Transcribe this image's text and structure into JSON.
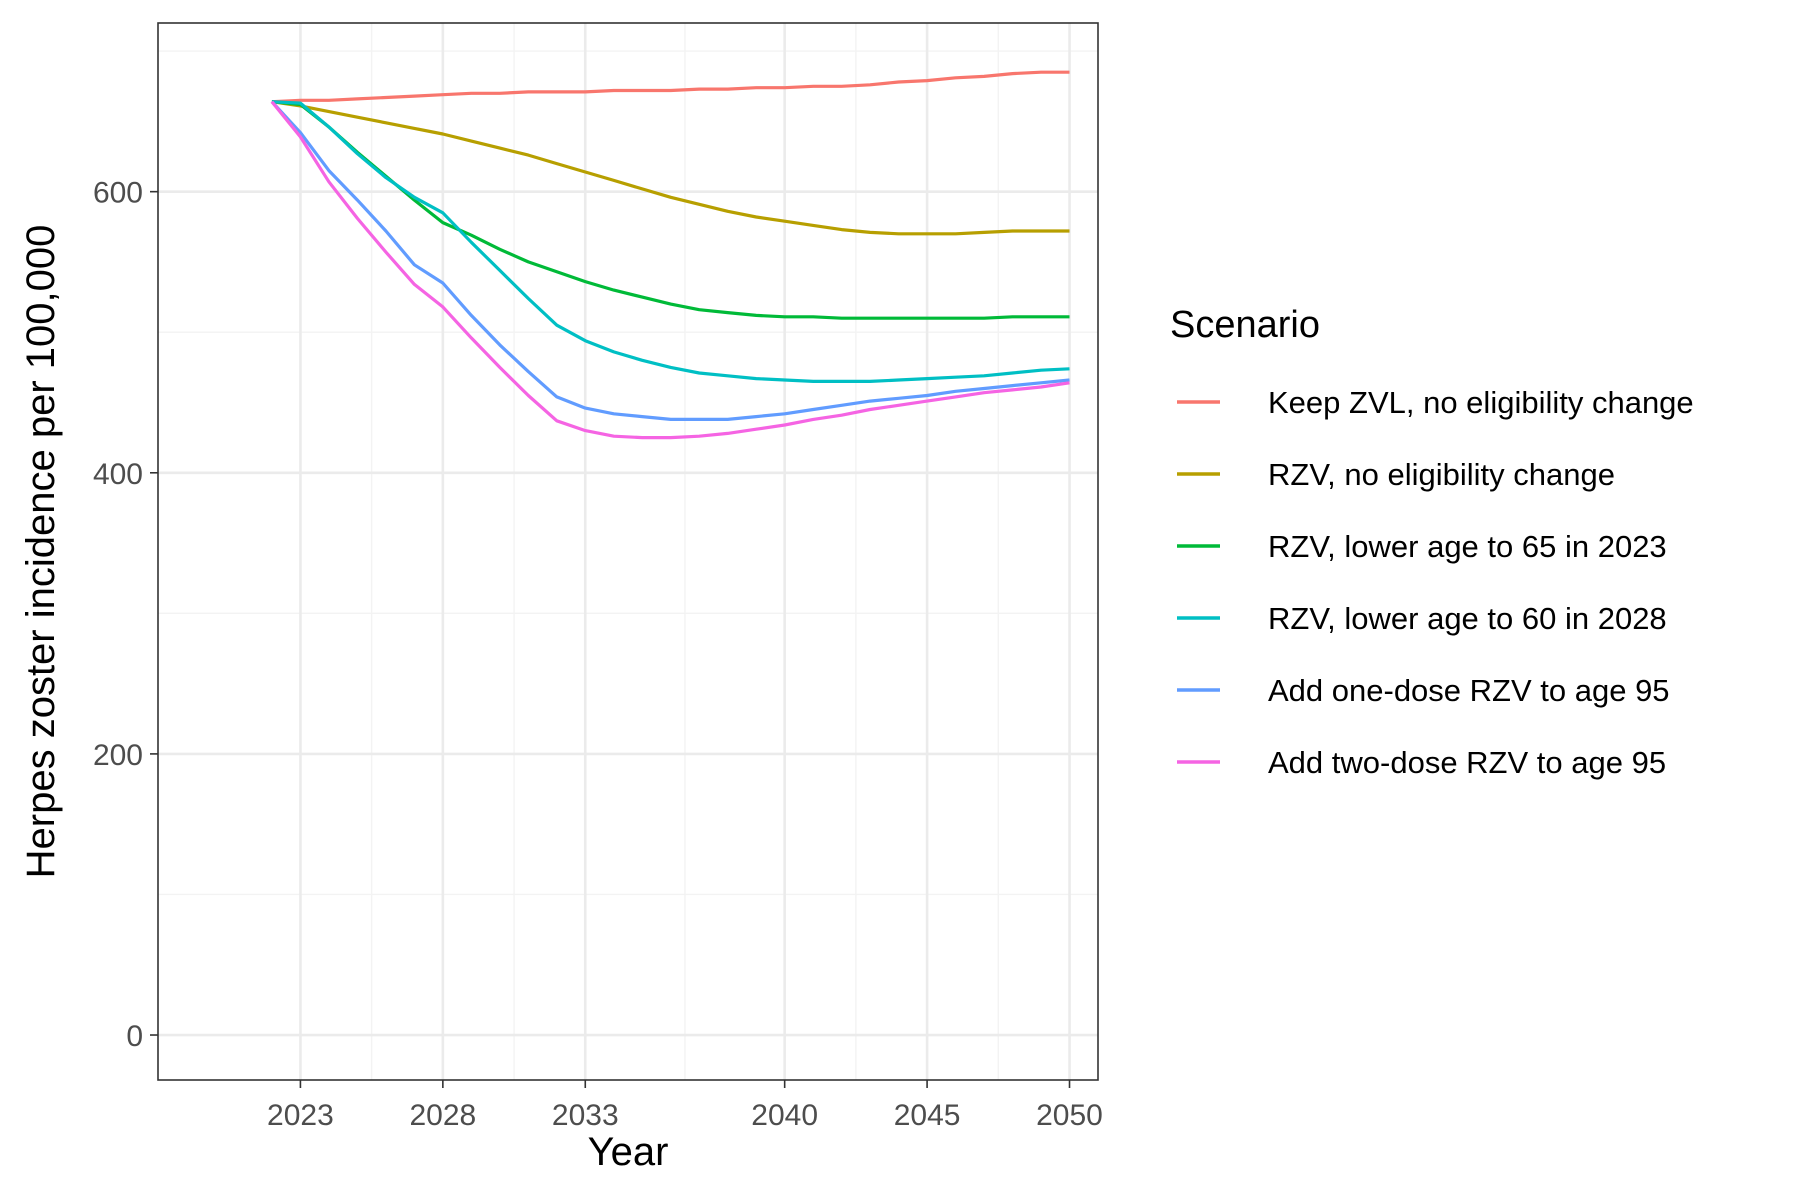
{
  "chart_data": {
    "type": "line",
    "title": "",
    "xlabel": "Year",
    "ylabel": "Herpes zoster incidence per 100,000",
    "xlim": [
      2018,
      2051
    ],
    "ylim": [
      -32,
      720
    ],
    "x_ticks": [
      2023,
      2028,
      2033,
      2040,
      2045,
      2050
    ],
    "x_tick_labels": [
      "2023",
      "2028",
      "2033",
      "2040",
      "2045",
      "2050"
    ],
    "y_ticks": [
      0,
      200,
      400,
      600
    ],
    "y_tick_labels": [
      "0",
      "200",
      "400",
      "600"
    ],
    "grid": true,
    "legend": {
      "title": "Scenario",
      "position": "right"
    },
    "series": [
      {
        "name": "Keep ZVL, no eligibility change",
        "color": "#F8766D",
        "x": [
          2022,
          2023,
          2024,
          2025,
          2026,
          2027,
          2028,
          2029,
          2030,
          2031,
          2032,
          2033,
          2034,
          2035,
          2036,
          2037,
          2038,
          2039,
          2040,
          2041,
          2042,
          2043,
          2044,
          2045,
          2046,
          2047,
          2048,
          2049,
          2050
        ],
        "values": [
          664,
          665,
          665,
          666,
          667,
          668,
          669,
          670,
          670,
          671,
          671,
          671,
          672,
          672,
          672,
          673,
          673,
          674,
          674,
          675,
          675,
          676,
          678,
          679,
          681,
          682,
          684,
          685,
          685
        ]
      },
      {
        "name": "RZV, no eligibility change",
        "color": "#B79F00",
        "x": [
          2022,
          2023,
          2024,
          2025,
          2026,
          2027,
          2028,
          2029,
          2030,
          2031,
          2032,
          2033,
          2034,
          2035,
          2036,
          2037,
          2038,
          2039,
          2040,
          2041,
          2042,
          2043,
          2044,
          2045,
          2046,
          2047,
          2048,
          2049,
          2050
        ],
        "values": [
          664,
          661,
          657,
          653,
          649,
          645,
          641,
          636,
          631,
          626,
          620,
          614,
          608,
          602,
          596,
          591,
          586,
          582,
          579,
          576,
          573,
          571,
          570,
          570,
          570,
          571,
          572,
          572,
          572
        ]
      },
      {
        "name": "RZV, lower age to 65 in 2023",
        "color": "#00BA38",
        "x": [
          2022,
          2023,
          2024,
          2025,
          2026,
          2027,
          2028,
          2029,
          2030,
          2031,
          2032,
          2033,
          2034,
          2035,
          2036,
          2037,
          2038,
          2039,
          2040,
          2041,
          2042,
          2043,
          2044,
          2045,
          2046,
          2047,
          2048,
          2049,
          2050
        ],
        "values": [
          664,
          662,
          646,
          628,
          611,
          594,
          578,
          569,
          559,
          550,
          543,
          536,
          530,
          525,
          520,
          516,
          514,
          512,
          511,
          511,
          510,
          510,
          510,
          510,
          510,
          510,
          511,
          511,
          511
        ]
      },
      {
        "name": "RZV, lower age to 60 in 2028",
        "color": "#00BFC4",
        "x": [
          2022,
          2023,
          2024,
          2025,
          2026,
          2027,
          2028,
          2029,
          2030,
          2031,
          2032,
          2033,
          2034,
          2035,
          2036,
          2037,
          2038,
          2039,
          2040,
          2041,
          2042,
          2043,
          2044,
          2045,
          2046,
          2047,
          2048,
          2049,
          2050
        ],
        "values": [
          664,
          663,
          646,
          627,
          610,
          596,
          585,
          564,
          544,
          524,
          505,
          494,
          486,
          480,
          475,
          471,
          469,
          467,
          466,
          465,
          465,
          465,
          466,
          467,
          468,
          469,
          471,
          473,
          474
        ]
      },
      {
        "name": "Add one-dose RZV to age 95",
        "color": "#619CFF",
        "x": [
          2022,
          2023,
          2024,
          2025,
          2026,
          2027,
          2028,
          2029,
          2030,
          2031,
          2032,
          2033,
          2034,
          2035,
          2036,
          2037,
          2038,
          2039,
          2040,
          2041,
          2042,
          2043,
          2044,
          2045,
          2046,
          2047,
          2048,
          2049,
          2050
        ],
        "values": [
          664,
          642,
          615,
          594,
          572,
          548,
          535,
          512,
          491,
          472,
          454,
          446,
          442,
          440,
          438,
          438,
          438,
          440,
          442,
          445,
          448,
          451,
          453,
          455,
          458,
          460,
          462,
          464,
          466
        ]
      },
      {
        "name": "Add two-dose RZV to age 95",
        "color": "#F564E3",
        "x": [
          2022,
          2023,
          2024,
          2025,
          2026,
          2027,
          2028,
          2029,
          2030,
          2031,
          2032,
          2033,
          2034,
          2035,
          2036,
          2037,
          2038,
          2039,
          2040,
          2041,
          2042,
          2043,
          2044,
          2045,
          2046,
          2047,
          2048,
          2049,
          2050
        ],
        "values": [
          664,
          639,
          607,
          581,
          557,
          534,
          518,
          496,
          475,
          455,
          437,
          430,
          426,
          425,
          425,
          426,
          428,
          431,
          434,
          438,
          441,
          445,
          448,
          451,
          454,
          457,
          459,
          461,
          464
        ]
      }
    ]
  }
}
